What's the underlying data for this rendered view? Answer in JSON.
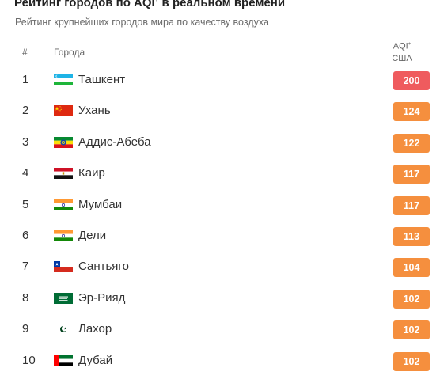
{
  "header": {
    "title": "Рейтинг городов по AQI",
    "title_mark": "+",
    "title_suffix": " в реальном времени",
    "subtitle": "Рейтинг крупнейших городов мира по качеству воздуха"
  },
  "table": {
    "col_rank": "#",
    "col_city": "Города",
    "col_aqi_line1": "AQI",
    "col_aqi_mark": "+",
    "col_aqi_line2": "США",
    "rows": [
      {
        "rank": "1",
        "city": "Ташкент",
        "aqi": "200",
        "flag_icon": "uzbekistan-flag-icon",
        "color": "#ef5b5e"
      },
      {
        "rank": "2",
        "city": "Ухань",
        "aqi": "124",
        "flag_icon": "china-flag-icon",
        "color": "#f58f3e"
      },
      {
        "rank": "3",
        "city": "Аддис-Абеба",
        "aqi": "122",
        "flag_icon": "ethiopia-flag-icon",
        "color": "#f58f3e"
      },
      {
        "rank": "4",
        "city": "Каир",
        "aqi": "117",
        "flag_icon": "egypt-flag-icon",
        "color": "#f58f3e"
      },
      {
        "rank": "5",
        "city": "Мумбаи",
        "aqi": "117",
        "flag_icon": "india-flag-icon",
        "color": "#f58f3e"
      },
      {
        "rank": "6",
        "city": "Дели",
        "aqi": "113",
        "flag_icon": "india-flag-icon",
        "color": "#f58f3e"
      },
      {
        "rank": "7",
        "city": "Сантьяго",
        "aqi": "104",
        "flag_icon": "chile-flag-icon",
        "color": "#f58f3e"
      },
      {
        "rank": "8",
        "city": "Эр-Рияд",
        "aqi": "102",
        "flag_icon": "saudi-arabia-flag-icon",
        "color": "#f58f3e"
      },
      {
        "rank": "9",
        "city": "Лахор",
        "aqi": "102",
        "flag_icon": "pakistan-flag-icon",
        "color": "#f58f3e"
      },
      {
        "rank": "10",
        "city": "Дубай",
        "aqi": "102",
        "flag_icon": "uae-flag-icon",
        "color": "#f58f3e"
      }
    ]
  }
}
